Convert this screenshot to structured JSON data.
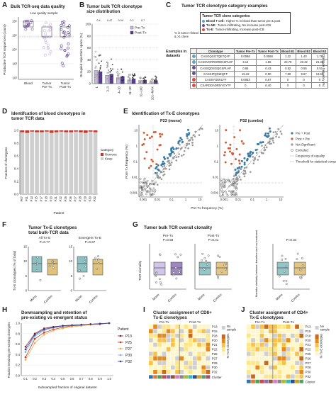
{
  "panels": {
    "A": {
      "label": "A",
      "title": "Bulk TCR-seq data quality",
      "note": "Low quality sample",
      "ylabel": "Productive TCR sequences (count)",
      "yticks": [
        "10⁶",
        "10⁵",
        "10⁴",
        "10³",
        "10²"
      ],
      "xcats": [
        "Blood",
        "Tumor\nPre-Tx",
        "Tumor\nPost-Tx"
      ]
    },
    "B": {
      "label": "B",
      "title": "Tumor bulk TCR clonotype",
      "title2": "size distribution",
      "ylabel": "Occupied repertoire space (%)",
      "yticks": [
        "100",
        "80",
        "60",
        "40",
        "20",
        "0"
      ],
      "xcats": [
        "1",
        "2–3",
        "4–10",
        "11–30",
        "31–100",
        "101–MAX"
      ],
      "legend": [
        "Pre-Tx",
        "Post-Tx"
      ],
      "pvals": [
        "0.4",
        "0.47",
        "0.04",
        "0.2",
        "0.7"
      ]
    },
    "C": {
      "label": "C",
      "title": "Tumor TCR clonotype category examples",
      "legend_title": "Tumor TCR clone categories",
      "legend_items": [
        {
          "name": "Blood T cell:",
          "desc": "Higher % in blood than tumor pre & post",
          "color": "#5aa6c9"
        },
        {
          "name": "Tx-NE:",
          "desc": "Tumor-infiltrating, No increase post-ICB",
          "color": "#6a4a9c"
        },
        {
          "name": "Tx-E:",
          "desc": "Tumor-infiltrating, Increase post-ICB",
          "color": "#e0483a"
        }
      ],
      "side_note": "% in tumor >blood & >1 clone",
      "row_caption": "Examples in datasets",
      "side_label": "Clonotype frequency (%)",
      "headers": [
        "Clonotype",
        "Tumor Pre-Tx",
        "Tumor Post-Tx",
        "Blood B1",
        "Blood B2",
        "Blood B3"
      ],
      "rows": [
        {
          "color": "#5aa6c9",
          "cells": [
            "CASGQGGTQETQYF",
            "0.0088",
            "0.0088",
            "1.22",
            "1.40",
            "1.78"
          ]
        },
        {
          "color": "#5aa6c9",
          "cells": [
            "CASSVGRRGRDNSPLHF",
            "3.14",
            "1.66",
            "23.78",
            "23.42",
            "21.38"
          ]
        },
        {
          "color": "#6a4a9c",
          "cells": [
            "CASSQDSGQGSPLHF",
            "0.65",
            "0.43",
            "0.52",
            "0.55",
            "0.51"
          ]
        },
        {
          "color": "#6a4a9c",
          "cells": [
            "CASSIPQINEQFF",
            "15.32",
            "0.90",
            "7.80",
            "9.67",
            "13.60"
          ]
        },
        {
          "color": "#e0483a",
          "cells": [
            "CASSYGEKLFF",
            "0.0053",
            "0.67",
            "0",
            "0",
            "0"
          ]
        },
        {
          "color": "#e0483a",
          "cells": [
            "CSARDDADRNYGYTF",
            "0",
            "6.40",
            "0",
            "0",
            "0"
          ]
        }
      ]
    },
    "D": {
      "label": "D",
      "title": "Identifcation of blood clonotypes in",
      "title2": "tumor TCR data",
      "ylabel": "Fraction of clonotypes",
      "xlabel": "Patient",
      "yticks": [
        "1.0",
        "0.8",
        "0.6",
        "0.4",
        "0.2",
        "0.0"
      ],
      "legend_title": "Category",
      "legend": [
        "Remove",
        "Keep"
      ],
      "patients": [
        "P07",
        "P11",
        "P13",
        "P15",
        "P17",
        "P18",
        "P20",
        "P21",
        "P22",
        "P25",
        "P26",
        "P27",
        "P28",
        "P29",
        "P30",
        "P32"
      ],
      "remove_frac": [
        0.03,
        0.04,
        0.02,
        0.03,
        0.03,
        0.02,
        0.04,
        0.03,
        0.02,
        0.03,
        0.03,
        0.02,
        0.03,
        0.04,
        0.02,
        0.03
      ]
    },
    "E": {
      "label": "E",
      "title": "Identification of Tx-E clonotypes",
      "sub1": "P23 (mono)",
      "sub2": "P32 (combo)",
      "ylabel": "Post-Tx frequency (%)",
      "xlabel": "Pre-Tx frequency (%)",
      "ticks": [
        "0.001",
        "0.01",
        "0.1",
        "1",
        "10"
      ],
      "legend": [
        "Pre + Post",
        "Post > Pre",
        "Not Significant",
        "Excluded",
        "Frequency of equality",
        "Threshold for statistical comparison"
      ]
    },
    "F": {
      "label": "F",
      "title": "Tumor Tx-E clonotypes",
      "title2": "total bulk-TCR data",
      "sub1": "All Tx-E",
      "sub2": "Emergent Tx-E",
      "p1": "P=0.77",
      "p2": "P=0.67",
      "ylabel": "Tx-E clonotypes (% of total)",
      "xcats": [
        "Mono",
        "Combo"
      ],
      "yticks": [
        "15",
        "10",
        "5",
        "0"
      ]
    },
    "G": {
      "label": "G",
      "title": "Tumor bulk TCR overall clonality",
      "sub1": "Pre-Tx",
      "sub2": "Post-Tx",
      "p1": "P=0.56",
      "p2": "P=0.41",
      "p3": "P=0.34",
      "ylabel1": "TCR clonality",
      "ylabel2": "Morisita similarity between baseline and on-treatment",
      "xcats": [
        "Mono",
        "Combo"
      ]
    },
    "H": {
      "label": "H",
      "title": "Downsampling and retention of",
      "title2": "pre-existing vs emergent status",
      "ylabel": "Fraction remaining pre-existing clonotypes",
      "xlabel": "Subsampled fraction of original dataset",
      "xticks": [
        "0.1",
        "0.2",
        "0.3",
        "0.4",
        "0.5",
        "0.6",
        "0.7",
        "0.8",
        "0.9",
        "1.0"
      ],
      "yticks": [
        "1.0",
        "0.8",
        "0.6",
        "0.4",
        "0.2",
        "0.0"
      ],
      "legend_title": "Patient",
      "series": [
        {
          "name": "P13",
          "color": "#7a2030",
          "values": [
            0.55,
            0.8,
            0.9,
            0.93,
            0.95,
            0.96,
            0.97,
            0.98,
            0.99,
            1.0
          ]
        },
        {
          "name": "P25",
          "color": "#c0392b",
          "values": [
            0.35,
            0.7,
            0.82,
            0.88,
            0.92,
            0.95,
            0.96,
            0.97,
            0.98,
            1.0
          ]
        },
        {
          "name": "P27",
          "color": "#e8b04a",
          "values": [
            0.3,
            0.62,
            0.78,
            0.86,
            0.9,
            0.93,
            0.95,
            0.97,
            0.99,
            1.0
          ]
        },
        {
          "name": "P30",
          "color": "#7fb3d5",
          "values": [
            0.45,
            0.75,
            0.86,
            0.91,
            0.94,
            0.96,
            0.97,
            0.98,
            0.99,
            1.0
          ]
        },
        {
          "name": "P32",
          "color": "#3a3f8f",
          "values": [
            0.5,
            0.78,
            0.88,
            0.92,
            0.95,
            0.96,
            0.97,
            0.98,
            0.99,
            1.0
          ]
        }
      ]
    },
    "I": {
      "label": "I",
      "title": "Cluster assignment of CD8+",
      "title2": "Tx-E clonotypes",
      "col1": "Pre-Tx",
      "col2": "Post-Tx",
      "clabel": "% Tx-E clonotypes",
      "nosample": "No sample",
      "xlabel": "Cluster",
      "patients": [
        "P13",
        "P15",
        "P18",
        "P20",
        "P21",
        "P22",
        "P26",
        "P27",
        "P29",
        "P30",
        "P32"
      ]
    },
    "J": {
      "label": "J",
      "title": "Cluster assignment of CD4+",
      "title2": "Tx-E clonotypes",
      "col1": "Pre-Tx",
      "col2": "Post-Tx",
      "clabel": "% Tx-E clonotypes",
      "nosample": "No sample",
      "xlabel": "Cluster",
      "patients": [
        "P13",
        "P15",
        "P18",
        "P20",
        "P21",
        "P22",
        "P25",
        "P26",
        "P27",
        "P29",
        "P30",
        "P32"
      ]
    }
  },
  "colors": {
    "pre": "#c6b7e2",
    "post": "#5b3d99",
    "blood": "#7b5ea7",
    "remove": "#c0392b",
    "keep": "#cfcfcf",
    "mono": "#5aa6a9",
    "combo": "#d4a843",
    "heat_low": "#fff6c9",
    "heat_high": "#e88a1a",
    "nosample": "#cfcfcf"
  }
}
